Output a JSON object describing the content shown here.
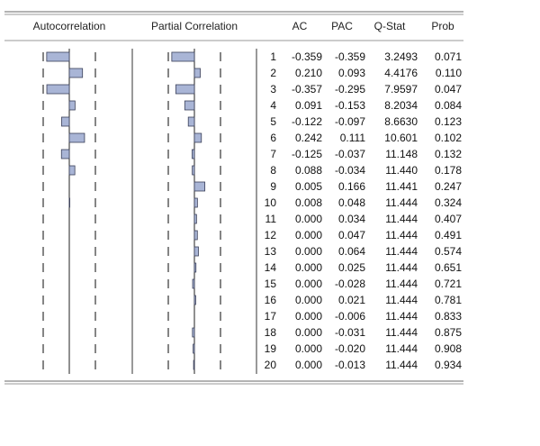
{
  "headers": {
    "autocorrelation": "Autocorrelation",
    "partial_correlation": "Partial Correlation",
    "ac": "AC",
    "pac": "PAC",
    "qstat": "Q-Stat",
    "prob": "Prob"
  },
  "colors": {
    "bar_fill": "#a9b5d6",
    "bar_stroke": "#3a3f58",
    "rule": "#9a9a9a"
  },
  "chart_data": {
    "type": "table",
    "columns": [
      "lag",
      "AC",
      "PAC",
      "Q-Stat",
      "Prob"
    ],
    "rows": [
      {
        "lag": "1",
        "ac": "-0.359",
        "pac": "-0.359",
        "q": "3.2493",
        "p": "0.071"
      },
      {
        "lag": "2",
        "ac": "0.210",
        "pac": "0.093",
        "q": "4.4176",
        "p": "0.110"
      },
      {
        "lag": "3",
        "ac": "-0.357",
        "pac": "-0.295",
        "q": "7.9597",
        "p": "0.047"
      },
      {
        "lag": "4",
        "ac": "0.091",
        "pac": "-0.153",
        "q": "8.2034",
        "p": "0.084"
      },
      {
        "lag": "5",
        "ac": "-0.122",
        "pac": "-0.097",
        "q": "8.6630",
        "p": "0.123"
      },
      {
        "lag": "6",
        "ac": "0.242",
        "pac": "0.111",
        "q": "10.601",
        "p": "0.102"
      },
      {
        "lag": "7",
        "ac": "-0.125",
        "pac": "-0.037",
        "q": "11.148",
        "p": "0.132"
      },
      {
        "lag": "8",
        "ac": "0.088",
        "pac": "-0.034",
        "q": "11.440",
        "p": "0.178"
      },
      {
        "lag": "9",
        "ac": "0.005",
        "pac": "0.166",
        "q": "11.441",
        "p": "0.247"
      },
      {
        "lag": "10",
        "ac": "0.008",
        "pac": "0.048",
        "q": "11.444",
        "p": "0.324"
      },
      {
        "lag": "11",
        "ac": "0.000",
        "pac": "0.034",
        "q": "11.444",
        "p": "0.407"
      },
      {
        "lag": "12",
        "ac": "0.000",
        "pac": "0.047",
        "q": "11.444",
        "p": "0.491"
      },
      {
        "lag": "13",
        "ac": "0.000",
        "pac": "0.064",
        "q": "11.444",
        "p": "0.574"
      },
      {
        "lag": "14",
        "ac": "0.000",
        "pac": "0.025",
        "q": "11.444",
        "p": "0.651"
      },
      {
        "lag": "15",
        "ac": "0.000",
        "pac": "-0.028",
        "q": "11.444",
        "p": "0.721"
      },
      {
        "lag": "16",
        "ac": "0.000",
        "pac": "0.021",
        "q": "11.444",
        "p": "0.781"
      },
      {
        "lag": "17",
        "ac": "0.000",
        "pac": "-0.006",
        "q": "11.444",
        "p": "0.833"
      },
      {
        "lag": "18",
        "ac": "0.000",
        "pac": "-0.031",
        "q": "11.444",
        "p": "0.875"
      },
      {
        "lag": "19",
        "ac": "0.000",
        "pac": "-0.020",
        "q": "11.444",
        "p": "0.908"
      },
      {
        "lag": "20",
        "ac": "0.000",
        "pac": "-0.013",
        "q": "11.444",
        "p": "0.934"
      }
    ]
  }
}
